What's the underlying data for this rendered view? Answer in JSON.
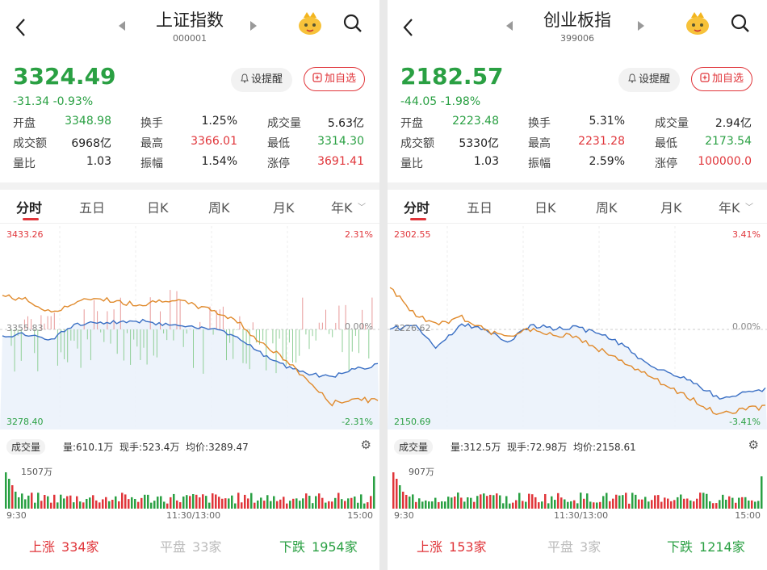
{
  "panels": [
    {
      "title": "上证指数",
      "code": "000001",
      "price": "3324.49",
      "change": "-31.34",
      "change_pct": "-0.93%",
      "alert_label": "设提醒",
      "add_label": "加自选",
      "stats": [
        [
          {
            "label": "开盘",
            "value": "3348.98",
            "color": "#2aa043"
          },
          {
            "label": "换手",
            "value": "1.25%",
            "color": "#222"
          },
          {
            "label": "成交量",
            "value": "5.63亿",
            "color": "#222"
          }
        ],
        [
          {
            "label": "成交额",
            "value": "6968亿",
            "color": "#222"
          },
          {
            "label": "最高",
            "value": "3366.01",
            "color": "#e0353a"
          },
          {
            "label": "最低",
            "value": "3314.30",
            "color": "#2aa043"
          }
        ],
        [
          {
            "label": "量比",
            "value": "1.03",
            "color": "#222"
          },
          {
            "label": "振幅",
            "value": "1.54%",
            "color": "#222"
          },
          {
            "label": "涨停",
            "value": "3691.41",
            "color": "#e0353a"
          }
        ]
      ],
      "tabs": [
        "分时",
        "五日",
        "日K",
        "周K",
        "月K",
        "年K"
      ],
      "chart": {
        "y_top": "3433.26",
        "y_mid": "3355.83",
        "y_bottom": "3278.40",
        "pct_top": "2.31%",
        "pct_mid": "0.00%",
        "pct_bottom": "-2.31%"
      },
      "volume_label": "成交量",
      "volume_info": "量:610.1万  现手:523.4万  均价:3289.47",
      "vol_max": "1507万",
      "time_start": "9:30",
      "time_mid": "11:30/13:00",
      "time_end": "15:00",
      "up_label": "上涨",
      "up_count": "334家",
      "flat_label": "平盘",
      "flat_count": "33家",
      "down_label": "下跌",
      "down_count": "1954家"
    },
    {
      "title": "创业板指",
      "code": "399006",
      "price": "2182.57",
      "change": "-44.05",
      "change_pct": "-1.98%",
      "alert_label": "设提醒",
      "add_label": "加自选",
      "stats": [
        [
          {
            "label": "开盘",
            "value": "2223.48",
            "color": "#2aa043"
          },
          {
            "label": "换手",
            "value": "5.31%",
            "color": "#222"
          },
          {
            "label": "成交量",
            "value": "2.94亿",
            "color": "#222"
          }
        ],
        [
          {
            "label": "成交额",
            "value": "5330亿",
            "color": "#222"
          },
          {
            "label": "最高",
            "value": "2231.28",
            "color": "#e0353a"
          },
          {
            "label": "最低",
            "value": "2173.54",
            "color": "#2aa043"
          }
        ],
        [
          {
            "label": "量比",
            "value": "1.03",
            "color": "#222"
          },
          {
            "label": "振幅",
            "value": "2.59%",
            "color": "#222"
          },
          {
            "label": "涨停",
            "value": "100000.0",
            "color": "#e0353a"
          }
        ]
      ],
      "tabs": [
        "分时",
        "五日",
        "日K",
        "周K",
        "月K",
        "年K"
      ],
      "chart": {
        "y_top": "2302.55",
        "y_mid": "2226.62",
        "y_bottom": "2150.69",
        "pct_top": "3.41%",
        "pct_mid": "0.00%",
        "pct_bottom": "-3.41%"
      },
      "volume_label": "成交量",
      "volume_info": "量:312.5万  现手:72.98万  均价:2158.61",
      "vol_max": "907万",
      "time_start": "9:30",
      "time_mid": "11:30/13:00",
      "time_end": "15:00",
      "up_label": "上涨",
      "up_count": "153家",
      "flat_label": "平盘",
      "flat_count": "3家",
      "down_label": "下跌",
      "down_count": "1214家"
    }
  ],
  "colors": {
    "up": "#e0353a",
    "down": "#2aa043",
    "price_line": "#3a6fc4",
    "avg_line": "#e08a2c",
    "flat": "#aaaaaa"
  }
}
